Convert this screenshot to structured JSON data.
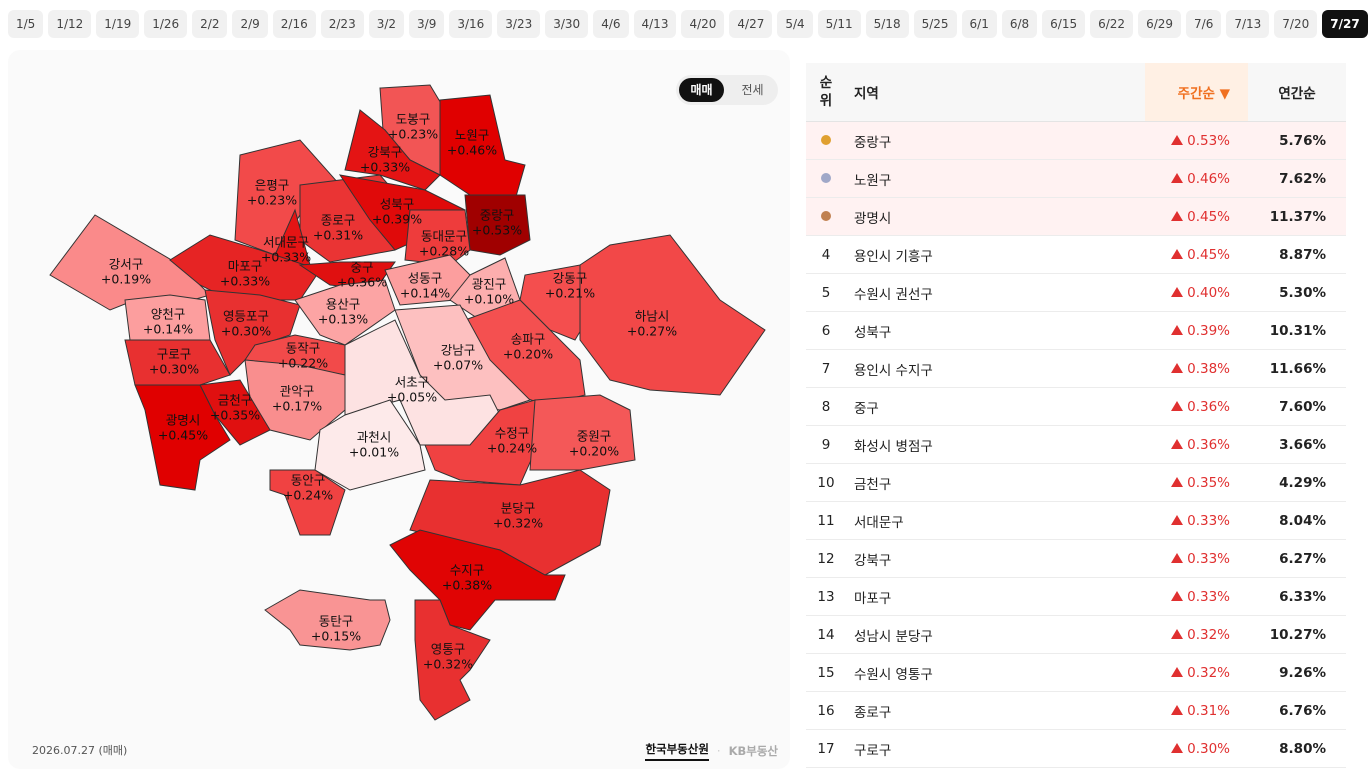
{
  "dates": {
    "items": [
      "1/5",
      "1/12",
      "1/19",
      "1/26",
      "2/2",
      "2/9",
      "2/16",
      "2/23",
      "3/2",
      "3/9",
      "3/16",
      "3/23",
      "3/30",
      "4/6",
      "4/13",
      "4/20",
      "4/27",
      "5/4",
      "5/11",
      "5/18",
      "5/25",
      "6/1",
      "6/8",
      "6/15",
      "6/22",
      "6/29",
      "7/6",
      "7/13",
      "7/20",
      "7/27"
    ],
    "selected": 29
  },
  "toggle": {
    "items": [
      "매매",
      "전세"
    ],
    "selected": 0
  },
  "map": {
    "regions": [
      {
        "name": "도봉구",
        "change": "+0.23%",
        "color": "#f25555"
      },
      {
        "name": "노원구",
        "change": "+0.46%",
        "color": "#e00000"
      },
      {
        "name": "강북구",
        "change": "+0.33%",
        "color": "#e41414"
      },
      {
        "name": "은평구",
        "change": "+0.23%",
        "color": "#f24a4a"
      },
      {
        "name": "종로구",
        "change": "+0.31%",
        "color": "#ea3434"
      },
      {
        "name": "성북구",
        "change": "+0.39%",
        "color": "#e00a0a"
      },
      {
        "name": "중랑구",
        "change": "+0.53%",
        "color": "#a00000"
      },
      {
        "name": "동대문구",
        "change": "+0.28%",
        "color": "#ee3c3c"
      },
      {
        "name": "서대문구",
        "change": "+0.33%",
        "color": "#e41414"
      },
      {
        "name": "강서구",
        "change": "+0.19%",
        "color": "#fa8a8a"
      },
      {
        "name": "마포구",
        "change": "+0.33%",
        "color": "#e62424"
      },
      {
        "name": "중구",
        "change": "+0.36%",
        "color": "#e01010"
      },
      {
        "name": "성동구",
        "change": "+0.14%",
        "color": "#fc9e9e"
      },
      {
        "name": "광진구",
        "change": "+0.10%",
        "color": "#fcaeae"
      },
      {
        "name": "강동구",
        "change": "+0.21%",
        "color": "#f44e4e"
      },
      {
        "name": "하남시",
        "change": "+0.27%",
        "color": "#f24848"
      },
      {
        "name": "양천구",
        "change": "+0.14%",
        "color": "#fc9e9e"
      },
      {
        "name": "영등포구",
        "change": "+0.30%",
        "color": "#e83030"
      },
      {
        "name": "용산구",
        "change": "+0.13%",
        "color": "#fca4a4"
      },
      {
        "name": "송파구",
        "change": "+0.20%",
        "color": "#f45050"
      },
      {
        "name": "강남구",
        "change": "+0.07%",
        "color": "#fdc0c0"
      },
      {
        "name": "구로구",
        "change": "+0.30%",
        "color": "#e83030"
      },
      {
        "name": "동작구",
        "change": "+0.22%",
        "color": "#f24a4a"
      },
      {
        "name": "서초구",
        "change": "+0.05%",
        "color": "#fde2e2"
      },
      {
        "name": "관악구",
        "change": "+0.17%",
        "color": "#f98e8e"
      },
      {
        "name": "금천구",
        "change": "+0.35%",
        "color": "#e01010"
      },
      {
        "name": "광명시",
        "change": "+0.45%",
        "color": "#e00000"
      },
      {
        "name": "과천시",
        "change": "+0.01%",
        "color": "#fdeaea"
      },
      {
        "name": "수정구",
        "change": "+0.24%",
        "color": "#f04242"
      },
      {
        "name": "중원구",
        "change": "+0.20%",
        "color": "#f45858"
      },
      {
        "name": "동안구",
        "change": "+0.24%",
        "color": "#f04242"
      },
      {
        "name": "분당구",
        "change": "+0.32%",
        "color": "#e83030"
      },
      {
        "name": "수지구",
        "change": "+0.38%",
        "color": "#e00404"
      },
      {
        "name": "동탄구",
        "change": "+0.15%",
        "color": "#f99494"
      },
      {
        "name": "영통구",
        "change": "+0.32%",
        "color": "#e83030"
      }
    ]
  },
  "footer": {
    "date": "2026.07.27 (매매)",
    "sources": [
      "한국부동산원",
      "KB부동산"
    ]
  },
  "table": {
    "header": [
      "순\n위",
      "지역",
      "주간순 ▼",
      "연간순"
    ],
    "rows": [
      [
        null,
        "중랑구",
        "0.53%",
        "5.76%"
      ],
      [
        null,
        "노원구",
        "0.46%",
        "7.62%"
      ],
      [
        null,
        "광명시",
        "0.45%",
        "11.37%"
      ],
      [
        "4",
        "용인시 기흥구",
        "0.45%",
        "8.87%"
      ],
      [
        "5",
        "수원시 권선구",
        "0.40%",
        "5.30%"
      ],
      [
        "6",
        "성북구",
        "0.39%",
        "10.31%"
      ],
      [
        "7",
        "용인시 수지구",
        "0.38%",
        "11.66%"
      ],
      [
        "8",
        "중구",
        "0.36%",
        "7.60%"
      ],
      [
        "9",
        "화성시 병점구",
        "0.36%",
        "3.66%"
      ],
      [
        "10",
        "금천구",
        "0.35%",
        "4.29%"
      ],
      [
        "11",
        "서대문구",
        "0.33%",
        "8.04%"
      ],
      [
        "12",
        "강북구",
        "0.33%",
        "6.27%"
      ],
      [
        "13",
        "마포구",
        "0.33%",
        "6.33%"
      ],
      [
        "14",
        "성남시 분당구",
        "0.32%",
        "10.27%"
      ],
      [
        "15",
        "수원시 영통구",
        "0.32%",
        "9.26%"
      ],
      [
        "16",
        "종로구",
        "0.31%",
        "6.76%"
      ],
      [
        "17",
        "구로구",
        "0.30%",
        "8.80%"
      ]
    ]
  }
}
